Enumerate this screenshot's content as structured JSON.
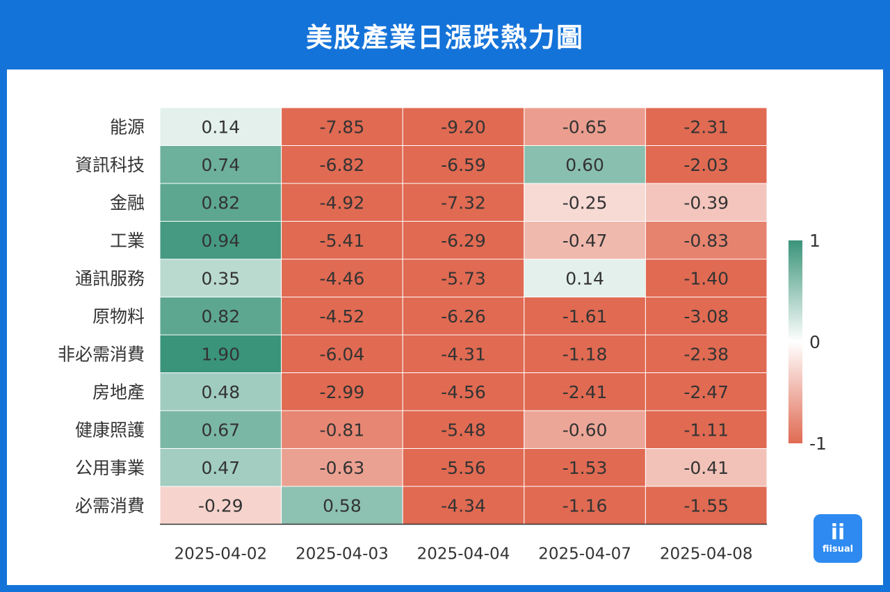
{
  "header": {
    "title": "美股產業日漲跌熱力圖"
  },
  "logo": {
    "glyph": "ii",
    "text": "fiisual"
  },
  "chart_data": {
    "type": "heatmap",
    "title": "美股產業日漲跌熱力圖",
    "rows": [
      "能源",
      "資訊科技",
      "金融",
      "工業",
      "通訊服務",
      "原物料",
      "非必需消費",
      "房地產",
      "健康照護",
      "公用事業",
      "必需消費"
    ],
    "columns": [
      "2025-04-02",
      "2025-04-03",
      "2025-04-04",
      "2025-04-07",
      "2025-04-08"
    ],
    "values": [
      [
        0.14,
        -7.85,
        -9.2,
        -0.65,
        -2.31
      ],
      [
        0.74,
        -6.82,
        -6.59,
        0.6,
        -2.03
      ],
      [
        0.82,
        -4.92,
        -7.32,
        -0.25,
        -0.39
      ],
      [
        0.94,
        -5.41,
        -6.29,
        -0.47,
        -0.83
      ],
      [
        0.35,
        -4.46,
        -5.73,
        0.14,
        -1.4
      ],
      [
        0.82,
        -4.52,
        -6.26,
        -1.61,
        -3.08
      ],
      [
        1.9,
        -6.04,
        -4.31,
        -1.18,
        -2.38
      ],
      [
        0.48,
        -2.99,
        -4.56,
        -2.41,
        -2.47
      ],
      [
        0.67,
        -0.81,
        -5.48,
        -0.6,
        -1.11
      ],
      [
        0.47,
        -0.63,
        -5.56,
        -1.53,
        -0.41
      ],
      [
        -0.29,
        0.58,
        -4.34,
        -1.16,
        -1.55
      ]
    ],
    "display": [
      [
        "0.14",
        "-7.85",
        "-9.20",
        "-0.65",
        "-2.31"
      ],
      [
        "0.74",
        "-6.82",
        "-6.59",
        "0.60",
        "-2.03"
      ],
      [
        "0.82",
        "-4.92",
        "-7.32",
        "-0.25",
        "-0.39"
      ],
      [
        "0.94",
        "-5.41",
        "-6.29",
        "-0.47",
        "-0.83"
      ],
      [
        "0.35",
        "-4.46",
        "-5.73",
        "0.14",
        "-1.40"
      ],
      [
        "0.82",
        "-4.52",
        "-6.26",
        "-1.61",
        "-3.08"
      ],
      [
        "1.90",
        "-6.04",
        "-4.31",
        "-1.18",
        "-2.38"
      ],
      [
        "0.48",
        "-2.99",
        "-4.56",
        "-2.41",
        "-2.47"
      ],
      [
        "0.67",
        "-0.81",
        "-5.48",
        "-0.60",
        "-1.11"
      ],
      [
        "0.47",
        "-0.63",
        "-5.56",
        "-1.53",
        "-0.41"
      ],
      [
        "-0.29",
        "0.58",
        "-4.34",
        "-1.16",
        "-1.55"
      ]
    ],
    "colorbar": {
      "range": [
        -1,
        1
      ],
      "ticks": [
        1,
        0,
        -1
      ],
      "tick_labels": [
        "1",
        "0",
        "-1"
      ],
      "colors": {
        "high": "#3a9479",
        "mid": "#ffffff",
        "low": "#e06a52"
      }
    }
  }
}
